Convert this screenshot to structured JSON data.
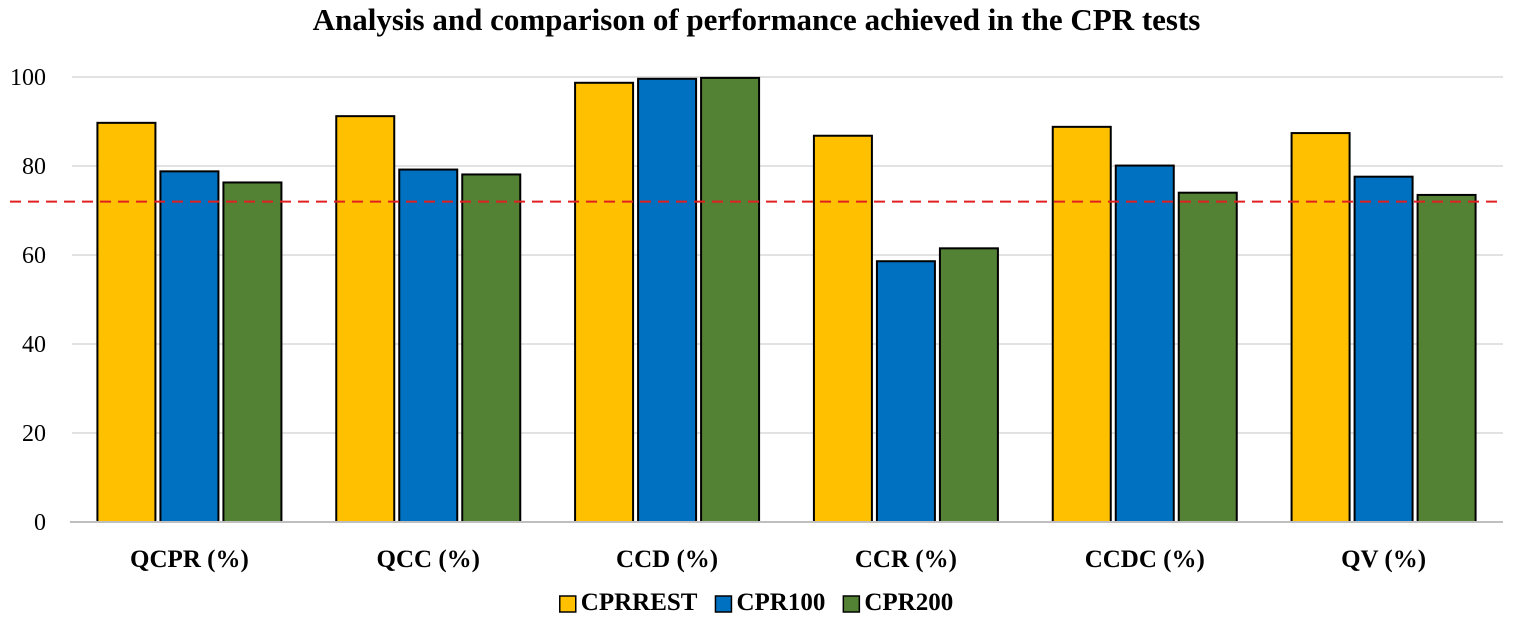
{
  "chart_data": {
    "type": "bar",
    "title": "Analysis and comparison of performance achieved in the CPR tests",
    "categories": [
      "QCPR (%)",
      "QCC (%)",
      "CCD (%)",
      "CCR (%)",
      "CCDC (%)",
      "QV (%)"
    ],
    "series": [
      {
        "name": "CPRREST",
        "color": "#FFC000",
        "values": [
          89.7,
          91.2,
          98.7,
          86.8,
          88.8,
          87.4
        ]
      },
      {
        "name": "CPR100",
        "color": "#0070C0",
        "values": [
          78.8,
          79.2,
          99.6,
          58.6,
          80.1,
          77.6
        ]
      },
      {
        "name": "CPR200",
        "color": "#548235",
        "values": [
          76.3,
          78.1,
          99.8,
          61.5,
          74.0,
          73.5
        ]
      }
    ],
    "ylim": [
      0,
      100
    ],
    "yticks": [
      0,
      20,
      40,
      60,
      80,
      100
    ],
    "reference_line": {
      "value": 72,
      "color": "#E02020",
      "style": "dashed"
    },
    "grid": true,
    "legend_position": "bottom-center",
    "xlabel": "",
    "ylabel": ""
  }
}
